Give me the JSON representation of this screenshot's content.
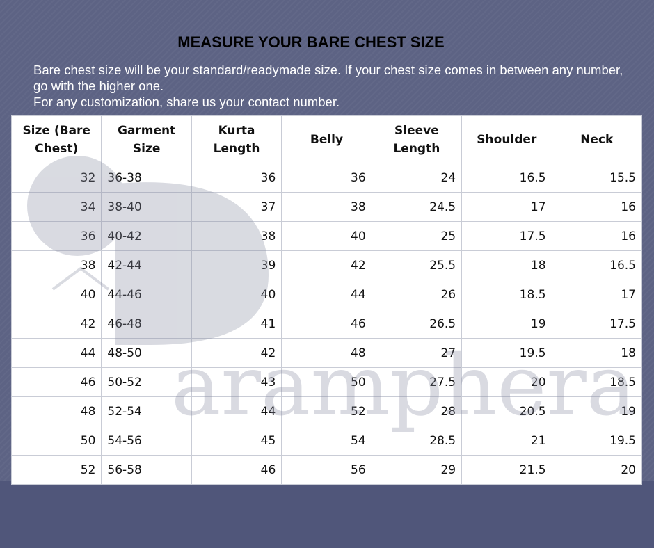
{
  "header": {
    "title": "MEASURE YOUR BARE CHEST SIZE",
    "intro": [
      "Bare chest size will be your standard/readymade size. If your chest size comes in between any number, go with the higher one.",
      "For any customization, share us your contact number."
    ]
  },
  "watermark": "aramphera",
  "table": {
    "columns": [
      "Size (Bare Chest)",
      "Garment Size",
      "Kurta Length",
      "Belly",
      "Sleeve Length",
      "Shoulder",
      "Neck"
    ],
    "rows": [
      [
        "32",
        "36-38",
        "36",
        "36",
        "24",
        "16.5",
        "15.5"
      ],
      [
        "34",
        "38-40",
        "37",
        "38",
        "24.5",
        "17",
        "16"
      ],
      [
        "36",
        "40-42",
        "38",
        "40",
        "25",
        "17.5",
        "16"
      ],
      [
        "38",
        "42-44",
        "39",
        "42",
        "25.5",
        "18",
        "16.5"
      ],
      [
        "40",
        "44-46",
        "40",
        "44",
        "26",
        "18.5",
        "17"
      ],
      [
        "42",
        "46-48",
        "41",
        "46",
        "26.5",
        "19",
        "17.5"
      ],
      [
        "44",
        "48-50",
        "42",
        "48",
        "27",
        "19.5",
        "18"
      ],
      [
        "46",
        "50-52",
        "43",
        "50",
        "27.5",
        "20",
        "18.5"
      ],
      [
        "48",
        "52-54",
        "44",
        "52",
        "28",
        "20.5",
        "19"
      ],
      [
        "50",
        "54-56",
        "45",
        "54",
        "28.5",
        "21",
        "19.5"
      ],
      [
        "52",
        "56-58",
        "46",
        "56",
        "29",
        "21.5",
        "20"
      ]
    ]
  }
}
